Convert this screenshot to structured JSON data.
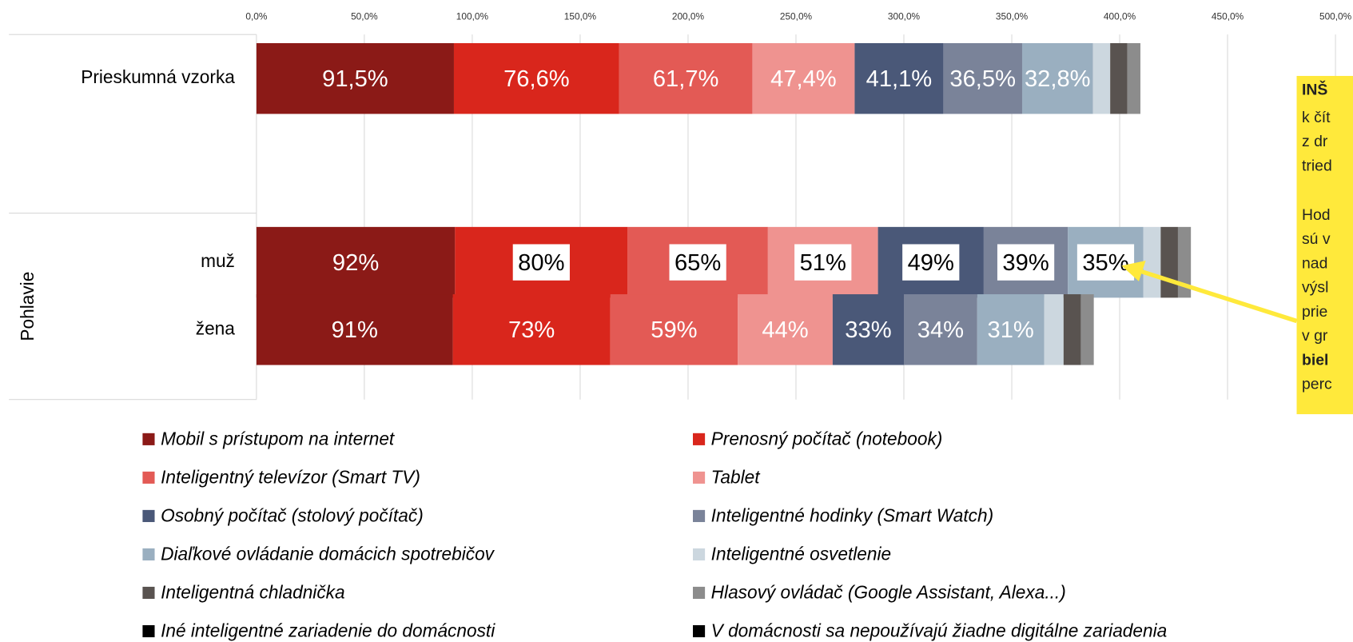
{
  "chart_data": {
    "type": "stacked_barh",
    "categories": [
      "Prieskumná vzorka",
      "muž",
      "žena"
    ],
    "group_label": "Pohlavie",
    "xlim": [
      0,
      500
    ],
    "xticks": [
      {
        "value": 0,
        "label": "0,0%"
      },
      {
        "value": 50,
        "label": "50,0%"
      },
      {
        "value": 100,
        "label": "100,0%"
      },
      {
        "value": 150,
        "label": "150,0%"
      },
      {
        "value": 200,
        "label": "200,0%"
      },
      {
        "value": 250,
        "label": "250,0%"
      },
      {
        "value": 300,
        "label": "300,0%"
      },
      {
        "value": 350,
        "label": "350,0%"
      },
      {
        "value": 400,
        "label": "400,0%"
      },
      {
        "value": 450,
        "label": "450,0%"
      },
      {
        "value": 500,
        "label": "500,0%"
      }
    ],
    "grid": true,
    "series": [
      {
        "name": "Mobil s prístupom na internet",
        "color": "#8b1a17",
        "values": [
          91.5,
          92,
          91
        ],
        "value_labels": [
          "91,5%",
          "92%",
          "91%"
        ]
      },
      {
        "name": "Prenosný počítač (notebook)",
        "color": "#d9261c",
        "values": [
          76.6,
          80,
          73
        ],
        "value_labels": [
          "76,6%",
          "80%",
          "73%"
        ]
      },
      {
        "name": "Inteligentný televízor (Smart TV)",
        "color": "#e35a55",
        "values": [
          61.7,
          65,
          59
        ],
        "value_labels": [
          "61,7%",
          "65%",
          "59%"
        ]
      },
      {
        "name": "Tablet",
        "color": "#ef9390",
        "values": [
          47.4,
          51,
          44
        ],
        "value_labels": [
          "47,4%",
          "51%",
          "44%"
        ]
      },
      {
        "name": "Osobný počítač (stolový počítač)",
        "color": "#4a5878",
        "values": [
          41.1,
          49,
          33
        ],
        "value_labels": [
          "41,1%",
          "49%",
          "33%"
        ]
      },
      {
        "name": "Inteligentné hodinky (Smart Watch)",
        "color": "#7a8399",
        "values": [
          36.5,
          39,
          34
        ],
        "value_labels": [
          "36,5%",
          "39%",
          "34%"
        ]
      },
      {
        "name": "Diaľkové ovládanie domácich spotrebičov",
        "color": "#9aafc0",
        "values": [
          32.8,
          35,
          31
        ],
        "value_labels": [
          "32,8%",
          "35%",
          "31%"
        ]
      },
      {
        "name": "Inteligentné osvetlenie",
        "color": "#ccd7df",
        "values": [
          8,
          8,
          9
        ]
      },
      {
        "name": "Inteligentná chladnička",
        "color": "#595350",
        "values": [
          8,
          8,
          8
        ]
      },
      {
        "name": "Hlasový ovládač (Google Assistant, Alexa...)",
        "color": "#8c8c8c",
        "values": [
          6,
          6,
          6
        ]
      },
      {
        "name": "Iné inteligentné zariadenie do domácnosti",
        "color": "#000000",
        "values": [
          0,
          0,
          0
        ]
      },
      {
        "name": "V domácnosti sa nepoužívajú žiadne digitálne zariadenia",
        "color": "#000000",
        "values": [
          0,
          0,
          0
        ]
      }
    ],
    "annotation": {
      "lines": [
        "INŠ",
        "k čít",
        "z dr",
        "tried",
        "Hod",
        "sú v",
        "nad",
        "výsl",
        "prie",
        "v gr",
        "biel",
        "perc"
      ],
      "color": "#ffe93b"
    }
  }
}
